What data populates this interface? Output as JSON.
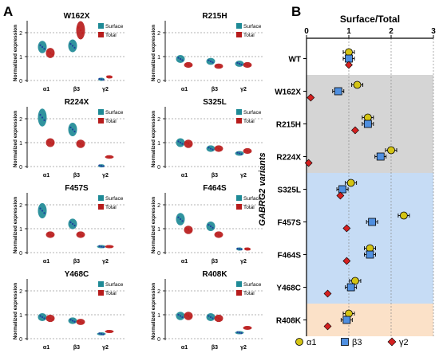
{
  "panel_labels": {
    "a": "A",
    "b": "B"
  },
  "colors": {
    "surface": "#1e8a96",
    "total": "#b71c1c",
    "surface_dot": "#1f3f9e",
    "total_dot": "#c21f1f",
    "shade_gray": "#d5d5d5",
    "shade_blue": "#c6dcf5",
    "shade_orange": "#fbe1c8",
    "a1_marker": "#d4c414",
    "b3_marker": "#4f8fe0",
    "g2_marker": "#d42020"
  },
  "panel_a": {
    "ylabel": "Normalized expression",
    "legend": {
      "surface": "Surface",
      "total": "Total"
    },
    "categories": [
      "α1",
      "β3",
      "γ2"
    ],
    "y_ticks": [
      "0",
      "1",
      "2"
    ]
  },
  "chart_data": [
    {
      "type": "violin",
      "panel": "A",
      "ylabel": "Normalized expression",
      "ylim": [
        0,
        2.3
      ],
      "categories": [
        "α1",
        "β3",
        "γ2"
      ],
      "legend": [
        "Surface",
        "Total"
      ],
      "subplots": [
        {
          "title": "W162X",
          "surface": [
            1.4,
            1.45,
            0.05
          ],
          "total": [
            1.15,
            2.1,
            0.15
          ]
        },
        {
          "title": "R215H",
          "surface": [
            0.9,
            0.8,
            0.7
          ],
          "total": [
            0.65,
            0.6,
            0.65
          ]
        },
        {
          "title": "R224X",
          "surface": [
            2.05,
            1.55,
            0.03
          ],
          "total": [
            1.0,
            0.95,
            0.4
          ]
        },
        {
          "title": "S325L",
          "surface": [
            1.0,
            0.75,
            0.55
          ],
          "total": [
            0.95,
            0.75,
            0.65
          ]
        },
        {
          "title": "F457S",
          "surface": [
            1.75,
            1.2,
            0.25
          ],
          "total": [
            0.75,
            0.75,
            0.25
          ]
        },
        {
          "title": "F464S",
          "surface": [
            1.4,
            1.1,
            0.15
          ],
          "total": [
            0.95,
            0.75,
            0.15
          ]
        },
        {
          "title": "Y468C",
          "surface": [
            0.9,
            0.75,
            0.2
          ],
          "total": [
            0.85,
            0.7,
            0.3
          ]
        },
        {
          "title": "R408K",
          "surface": [
            0.95,
            0.9,
            0.25
          ],
          "total": [
            0.95,
            0.85,
            0.45
          ]
        }
      ]
    },
    {
      "type": "dot",
      "panel": "B",
      "title": "Surface/Total",
      "ylabel": "GABRG2 variants",
      "xlim": [
        0,
        3
      ],
      "x_ticks": [
        "0",
        "1",
        "2",
        "3"
      ],
      "grid": true,
      "legend": [
        "α1",
        "β3",
        "γ2"
      ],
      "legend_placement": "bottom",
      "categories": [
        "WT",
        "W162X",
        "R215H",
        "R224X",
        "S325L",
        "F457S",
        "F464S",
        "Y468C",
        "R408K"
      ],
      "series": [
        {
          "name": "α1",
          "values": [
            1.0,
            1.2,
            1.45,
            2.0,
            1.05,
            2.3,
            1.5,
            1.15,
            1.0
          ]
        },
        {
          "name": "β3",
          "values": [
            1.0,
            0.75,
            1.45,
            1.75,
            0.85,
            1.55,
            1.5,
            1.05,
            0.95
          ]
        },
        {
          "name": "γ2",
          "values": [
            1.0,
            0.1,
            1.15,
            0.05,
            0.8,
            0.95,
            0.95,
            0.5,
            0.5
          ]
        }
      ]
    }
  ]
}
